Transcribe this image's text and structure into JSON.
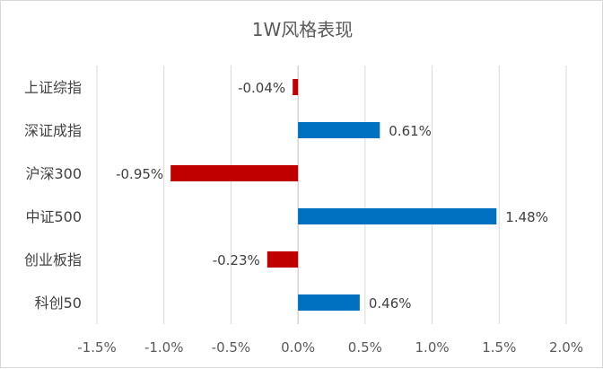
{
  "chart_data": {
    "type": "bar",
    "orientation": "horizontal",
    "title": "1W风格表现",
    "categories": [
      "上证综指",
      "深证成指",
      "沪深300",
      "中证500",
      "创业板指",
      "科创50"
    ],
    "values": [
      -0.04,
      0.61,
      -0.95,
      1.48,
      -0.23,
      0.46
    ],
    "data_labels": [
      "-0.04%",
      "0.61%",
      "-0.95%",
      "1.48%",
      "-0.23%",
      "0.46%"
    ],
    "x_ticks": [
      -1.5,
      -1.0,
      -0.5,
      0.0,
      0.5,
      1.0,
      1.5,
      2.0
    ],
    "x_tick_labels": [
      "-1.5%",
      "-1.0%",
      "-0.5%",
      "0.0%",
      "0.5%",
      "1.0%",
      "1.5%",
      "2.0%"
    ],
    "xlim": [
      -1.5,
      2.0
    ],
    "xlabel": "",
    "ylabel": "",
    "grid": "vertical",
    "legend": "none",
    "colors": {
      "positive": "#0070C0",
      "negative": "#C00000",
      "grid": "#d9d9d9",
      "axis": "#bfbfbf"
    }
  }
}
